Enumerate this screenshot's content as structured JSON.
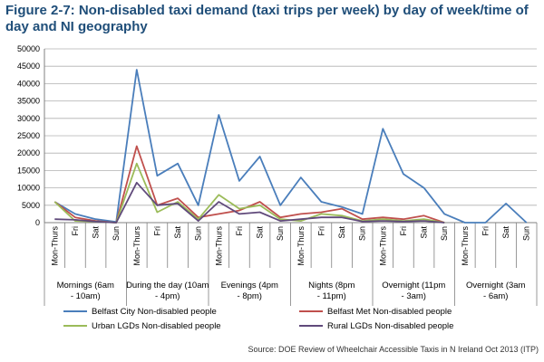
{
  "title": "Figure 2-7: Non-disabled taxi demand (taxi trips per week) by day of week/time of day and NI geography",
  "source": "Source: DOE Review of Wheelchair Accessible Taxis in N Ireland Oct 2013 (ITP)",
  "chart_data": {
    "type": "line",
    "title": "",
    "xlabel": "",
    "ylabel": "",
    "ylim": [
      0,
      50000
    ],
    "yticks": [
      0,
      5000,
      10000,
      15000,
      20000,
      25000,
      30000,
      35000,
      40000,
      45000,
      50000
    ],
    "grid": true,
    "legend_position": "bottom",
    "days": [
      "Mon-Thurs",
      "Fri",
      "Sat",
      "Sun"
    ],
    "periods": [
      "Mornings (6am - 10am)",
      "During the day (10am - 4pm)",
      "Evenings (4pm - 8pm)",
      "Nights (8pm - 11pm)",
      "Overnight (11pm - 3am)",
      "Overnight (3am - 6am)"
    ],
    "categories": [
      "Mon-Thurs",
      "Fri",
      "Sat",
      "Sun",
      "Mon-Thurs",
      "Fri",
      "Sat",
      "Sun",
      "Mon-Thurs",
      "Fri",
      "Sat",
      "Sun",
      "Mon-Thurs",
      "Fri",
      "Sat",
      "Sun",
      "Mon-Thurs",
      "Fri",
      "Sat",
      "Sun",
      "Mon-Thurs",
      "Fri",
      "Sat",
      "Sun"
    ],
    "series": [
      {
        "name": "Belfast City Non-disabled people",
        "color": "#4a7ebb",
        "values": [
          6000,
          2500,
          1000,
          200,
          44000,
          13500,
          17000,
          5000,
          31000,
          12000,
          19000,
          5000,
          13000,
          6000,
          4500,
          2500,
          27000,
          14000,
          10000,
          2500,
          0,
          0,
          5500,
          0
        ]
      },
      {
        "name": "Belfast Met Non-disabled people",
        "color": "#c0504d",
        "values": [
          6000,
          1500,
          500,
          0,
          22000,
          5000,
          7000,
          1500,
          2500,
          3500,
          6000,
          1500,
          2500,
          3000,
          4000,
          1000,
          1500,
          1000,
          2000,
          0,
          null,
          null,
          null,
          null
        ]
      },
      {
        "name": "Urban LGDs Non-disabled people",
        "color": "#9bbb59",
        "values": [
          6000,
          500,
          300,
          0,
          17000,
          3000,
          6000,
          1000,
          8000,
          4000,
          5000,
          1000,
          500,
          2500,
          2000,
          500,
          1000,
          500,
          1000,
          0,
          null,
          null,
          null,
          null
        ]
      },
      {
        "name": "Rural LGDs Non-disabled people",
        "color": "#604a7b",
        "values": [
          1000,
          800,
          300,
          0,
          11500,
          5000,
          5500,
          500,
          6000,
          2500,
          3000,
          500,
          1000,
          1500,
          1500,
          300,
          500,
          300,
          500,
          0,
          null,
          null,
          null,
          null
        ]
      }
    ]
  }
}
